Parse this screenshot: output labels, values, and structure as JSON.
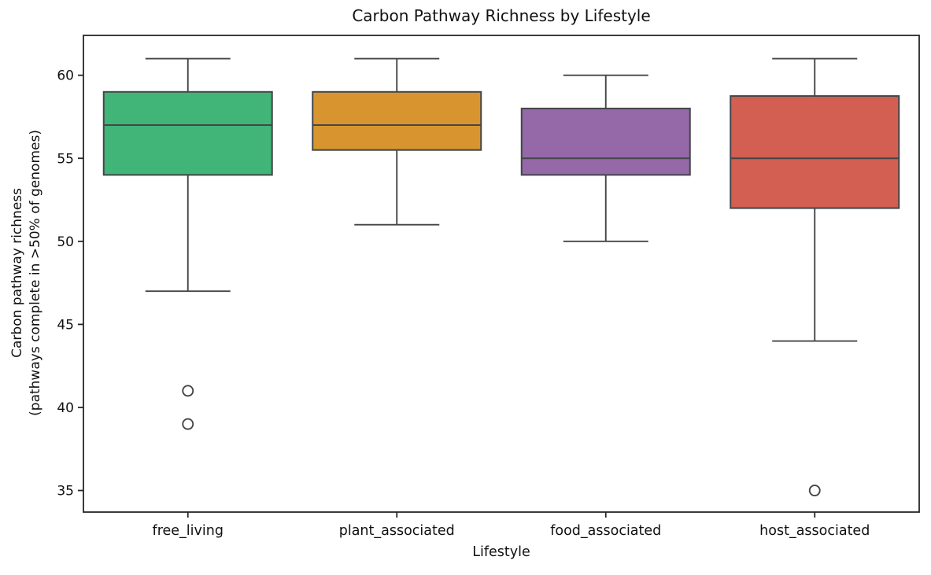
{
  "figure": {
    "background": "#ffffff"
  },
  "chart_data": {
    "type": "boxplot",
    "title": "Carbon Pathway Richness by Lifestyle",
    "xlabel": "Lifestyle",
    "ylabel": "Carbon pathway richness\n(pathways complete in >50% of genomes)",
    "categories": [
      "free_living",
      "plant_associated",
      "food_associated",
      "host_associated"
    ],
    "series": [
      {
        "name": "free_living",
        "whisker_low": 47,
        "q1": 54,
        "median": 57,
        "q3": 59,
        "whisker_high": 61,
        "outliers": [
          41,
          39
        ],
        "color": "#41b478"
      },
      {
        "name": "plant_associated",
        "whisker_low": 51,
        "q1": 55.5,
        "median": 57,
        "q3": 59,
        "whisker_high": 61,
        "outliers": [],
        "color": "#d8952f"
      },
      {
        "name": "food_associated",
        "whisker_low": 50,
        "q1": 54,
        "median": 55,
        "q3": 58,
        "whisker_high": 60,
        "outliers": [],
        "color": "#9568a8"
      },
      {
        "name": "host_associated",
        "whisker_low": 44,
        "q1": 52,
        "median": 55,
        "q3": 58.75,
        "whisker_high": 61,
        "outliers": [
          35
        ],
        "color": "#d25f51"
      }
    ],
    "yticks": [
      35,
      40,
      45,
      50,
      55,
      60
    ],
    "ylim": [
      33.7,
      62.4
    ],
    "grid": false,
    "legend": false,
    "style": {
      "spine_color": "#262626",
      "box_edge_color": "#434649",
      "outlier_fill": "#ffffff",
      "text_color": "#111111"
    }
  }
}
